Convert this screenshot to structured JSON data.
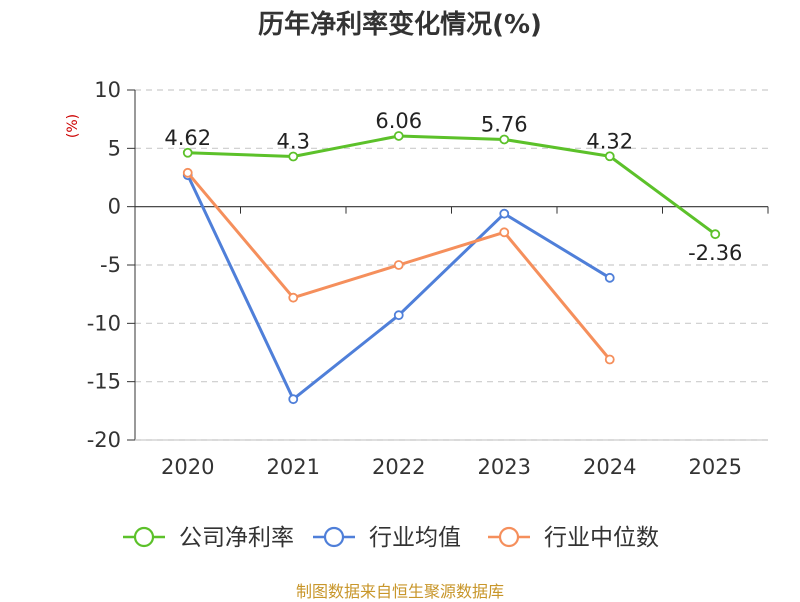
{
  "chart_data": {
    "type": "line",
    "title": "历年净利率变化情况(%)",
    "ylabel": "(%)",
    "xlabel": "",
    "categories": [
      "2020",
      "2021",
      "2022",
      "2023",
      "2024",
      "2025"
    ],
    "ylim": [
      -20,
      10
    ],
    "yticks": [
      10,
      5,
      0,
      -5,
      -10,
      -15,
      -20
    ],
    "grid": true,
    "legend_position": "bottom",
    "series": [
      {
        "name": "公司净利率",
        "color": "#5cc12a",
        "values": [
          4.62,
          4.3,
          6.06,
          5.76,
          4.32,
          -2.36
        ],
        "labels": [
          "4.62",
          "4.3",
          "6.06",
          "5.76",
          "4.32",
          "-2.36"
        ]
      },
      {
        "name": "行业均值",
        "color": "#4f7fd9",
        "values": [
          2.7,
          -16.5,
          -9.3,
          -0.6,
          -6.1,
          null
        ],
        "labels": []
      },
      {
        "name": "行业中位数",
        "color": "#f58f5c",
        "values": [
          2.9,
          -7.8,
          -5.0,
          -2.2,
          -13.1,
          null
        ],
        "labels": []
      }
    ]
  },
  "footer": {
    "source": "制图数据来自恒生聚源数据库"
  }
}
